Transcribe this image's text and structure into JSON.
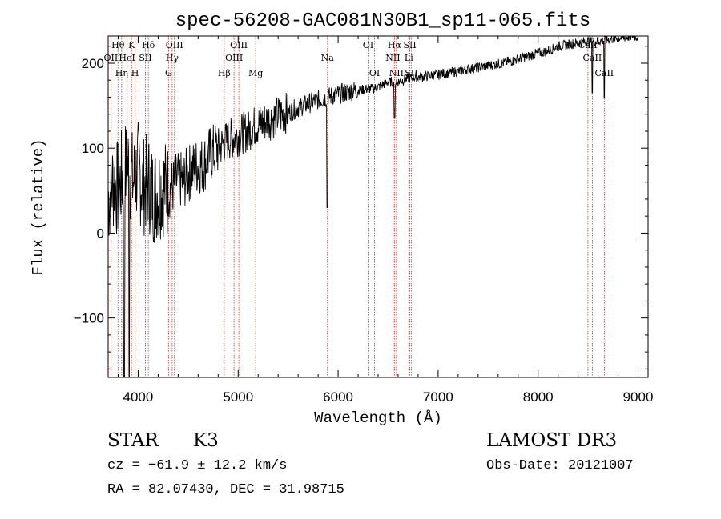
{
  "chart_data": {
    "type": "line",
    "title": "spec-56208-GAC081N30B1_sp11-065.fits",
    "xlabel": "Wavelength (Å)",
    "ylabel": "Flux (relative)",
    "xlim": [
      3700,
      9100
    ],
    "ylim": [
      -170,
      232
    ],
    "xticks": [
      4000,
      5000,
      6000,
      7000,
      8000,
      9000
    ],
    "xtick_labels": [
      "4000",
      "5000",
      "6000",
      "7000",
      "8000",
      "9000"
    ],
    "yticks": [
      -100,
      0,
      100,
      200
    ],
    "ytick_labels": [
      "−100",
      "0",
      "100",
      "200"
    ],
    "grid": false,
    "series": [
      {
        "name": "flux",
        "x": [
          3700,
          3750,
          3800,
          3850,
          3900,
          3950,
          4000,
          4050,
          4100,
          4150,
          4200,
          4250,
          4300,
          4350,
          4400,
          4450,
          4500,
          4550,
          4600,
          4650,
          4700,
          4750,
          4800,
          4850,
          4900,
          4950,
          5000,
          5050,
          5100,
          5150,
          5200,
          5250,
          5300,
          5350,
          5400,
          5450,
          5500,
          5550,
          5600,
          5650,
          5700,
          5750,
          5800,
          5850,
          5900,
          5950,
          6000,
          6050,
          6100,
          6150,
          6200,
          6250,
          6300,
          6350,
          6400,
          6450,
          6500,
          6550,
          6600,
          6650,
          6700,
          6750,
          6800,
          6850,
          6900,
          6950,
          7000,
          7050,
          7100,
          7150,
          7200,
          7250,
          7300,
          7350,
          7400,
          7450,
          7500,
          7550,
          7600,
          7650,
          7700,
          7750,
          7800,
          7850,
          7900,
          7950,
          8000,
          8050,
          8100,
          8150,
          8200,
          8250,
          8300,
          8350,
          8400,
          8450,
          8500,
          8550,
          8600,
          8650,
          8700,
          8750,
          8800,
          8850,
          8900,
          8950,
          9000
        ],
        "values": [
          40,
          60,
          50,
          70,
          80,
          60,
          75,
          55,
          60,
          45,
          50,
          55,
          50,
          55,
          65,
          60,
          70,
          75,
          80,
          80,
          90,
          95,
          100,
          105,
          110,
          112,
          115,
          118,
          120,
          125,
          128,
          130,
          133,
          135,
          138,
          140,
          142,
          145,
          148,
          150,
          152,
          155,
          157,
          158,
          160,
          162,
          163,
          165,
          166,
          168,
          168,
          169,
          170,
          170,
          172,
          175,
          178,
          178,
          178,
          180,
          182,
          183,
          184,
          184,
          185,
          186,
          186,
          188,
          188,
          190,
          190,
          192,
          193,
          194,
          195,
          196,
          197,
          198,
          199,
          200,
          202,
          203,
          205,
          207,
          208,
          210,
          212,
          213,
          215,
          217,
          220,
          221,
          222,
          223,
          224,
          225,
          226,
          225,
          226,
          227,
          228,
          229,
          230,
          230,
          231,
          232,
          231
        ]
      }
    ],
    "absorption_features": [
      {
        "x": 5892,
        "y": 30
      },
      {
        "x": 6563,
        "y": 135
      },
      {
        "x": 8542,
        "y": 165
      },
      {
        "x": 8662,
        "y": 160
      },
      {
        "x": 3860,
        "y": -170
      },
      {
        "x": 3910,
        "y": -170
      }
    ],
    "line_markers": [
      {
        "x": 3727,
        "row": 1,
        "label": "OII"
      },
      {
        "x": 3798,
        "row": 0,
        "label": "Hθ"
      },
      {
        "x": 3835,
        "row": 2,
        "label": "Hη"
      },
      {
        "x": 3889,
        "row": 1,
        "label": "HeI"
      },
      {
        "x": 3934,
        "row": 0,
        "label": "K"
      },
      {
        "x": 3969,
        "row": 2,
        "label": "H"
      },
      {
        "x": 4072,
        "row": 1,
        "label": "SII"
      },
      {
        "x": 4102,
        "row": 0,
        "label": "Hδ"
      },
      {
        "x": 4304,
        "row": 2,
        "label": "G"
      },
      {
        "x": 4340,
        "row": 1,
        "label": "Hγ"
      },
      {
        "x": 4363,
        "row": 0,
        "label": "OIII"
      },
      {
        "x": 4861,
        "row": 2,
        "label": "Hβ"
      },
      {
        "x": 4959,
        "row": 1,
        "label": "OIII"
      },
      {
        "x": 5007,
        "row": 0,
        "label": "OIII"
      },
      {
        "x": 5175,
        "row": 2,
        "label": "Mg"
      },
      {
        "x": 5893,
        "row": 1,
        "label": "Na"
      },
      {
        "x": 6300,
        "row": 0,
        "label": "OI"
      },
      {
        "x": 6364,
        "row": 2,
        "label": "OI"
      },
      {
        "x": 6548,
        "row": 1,
        "label": "NII"
      },
      {
        "x": 6563,
        "row": 0,
        "label": "Hα"
      },
      {
        "x": 6583,
        "row": 2,
        "label": "NII"
      },
      {
        "x": 6707,
        "row": 1,
        "label": "Li"
      },
      {
        "x": 6717,
        "row": 0,
        "label": "SII"
      },
      {
        "x": 6731,
        "row": 2,
        "label": "SII"
      },
      {
        "x": 8498,
        "row": 0,
        "label": "CaII"
      },
      {
        "x": 8542,
        "row": 1,
        "label": "CaII"
      },
      {
        "x": 8662,
        "row": 2,
        "label": "CaII"
      }
    ]
  },
  "info": {
    "object_class": "STAR",
    "subclass": "K3",
    "survey": "LAMOST DR3",
    "redshift": "cz = −61.9 ± 12.2 km/s",
    "obs_date": "Obs-Date: 20121007",
    "coords": "RA =  82.07430, DEC =  31.98715"
  }
}
